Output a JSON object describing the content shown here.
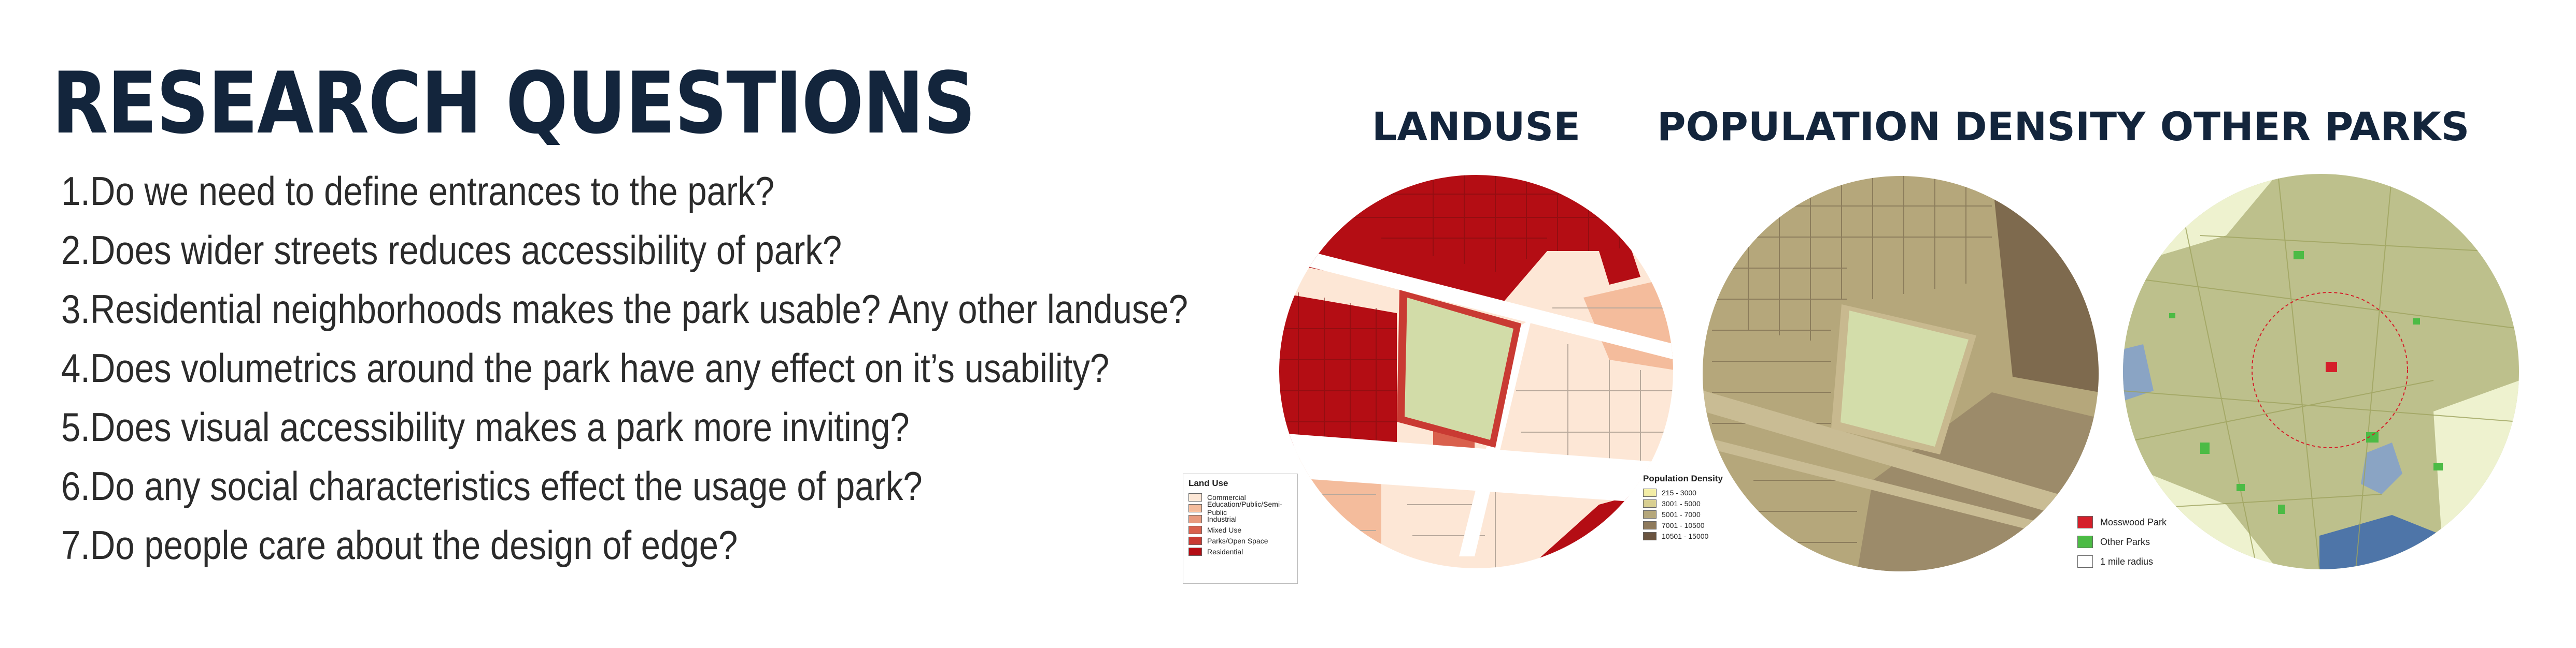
{
  "title": "RESEARCH QUESTIONS",
  "questions": [
    "1.Do we need to define entrances to the park?",
    "2.Does wider streets reduces accessibility of park?",
    "3.Residential neighborhoods makes the park usable? Any other landuse?",
    "4.Does volumetrics around the park have any effect on it’s usability?",
    "5.Does visual accessibility makes a park more inviting?",
    "6.Do any social characteristics effect the usage of park?",
    "7.Do people care about the design of edge?"
  ],
  "maps": {
    "landuse": {
      "title": "LANDUSE",
      "legend_title": "Land Use",
      "legend": [
        {
          "label": "Commercial",
          "color": "#fde7d6"
        },
        {
          "label": "Education/Public/Semi-Public",
          "color": "#f4bc9c"
        },
        {
          "label": "Industrial",
          "color": "#e89a7e"
        },
        {
          "label": "Mixed Use",
          "color": "#d9604d"
        },
        {
          "label": "Parks/Open Space",
          "color": "#c93a33"
        },
        {
          "label": "Residential",
          "color": "#b40d14"
        }
      ]
    },
    "density": {
      "title": "POPULATION DENSITY",
      "legend_title": "Population Density",
      "legend": [
        {
          "label": "215 - 3000",
          "color": "#f3eda6"
        },
        {
          "label": "3001 - 5000",
          "color": "#d8cf92"
        },
        {
          "label": "5001 - 7000",
          "color": "#b5a77b"
        },
        {
          "label": "7001 - 10500",
          "color": "#8e7a5c"
        },
        {
          "label": "10501 - 15000",
          "color": "#6a5440"
        }
      ]
    },
    "parks": {
      "title": "OTHER PARKS",
      "legend": [
        {
          "label": "Mosswood Park",
          "color": "#d51f2a"
        },
        {
          "label": "Other Parks",
          "color": "#4cbb45"
        },
        {
          "label": "1 mile radius",
          "color": "#ffffff"
        }
      ]
    }
  }
}
